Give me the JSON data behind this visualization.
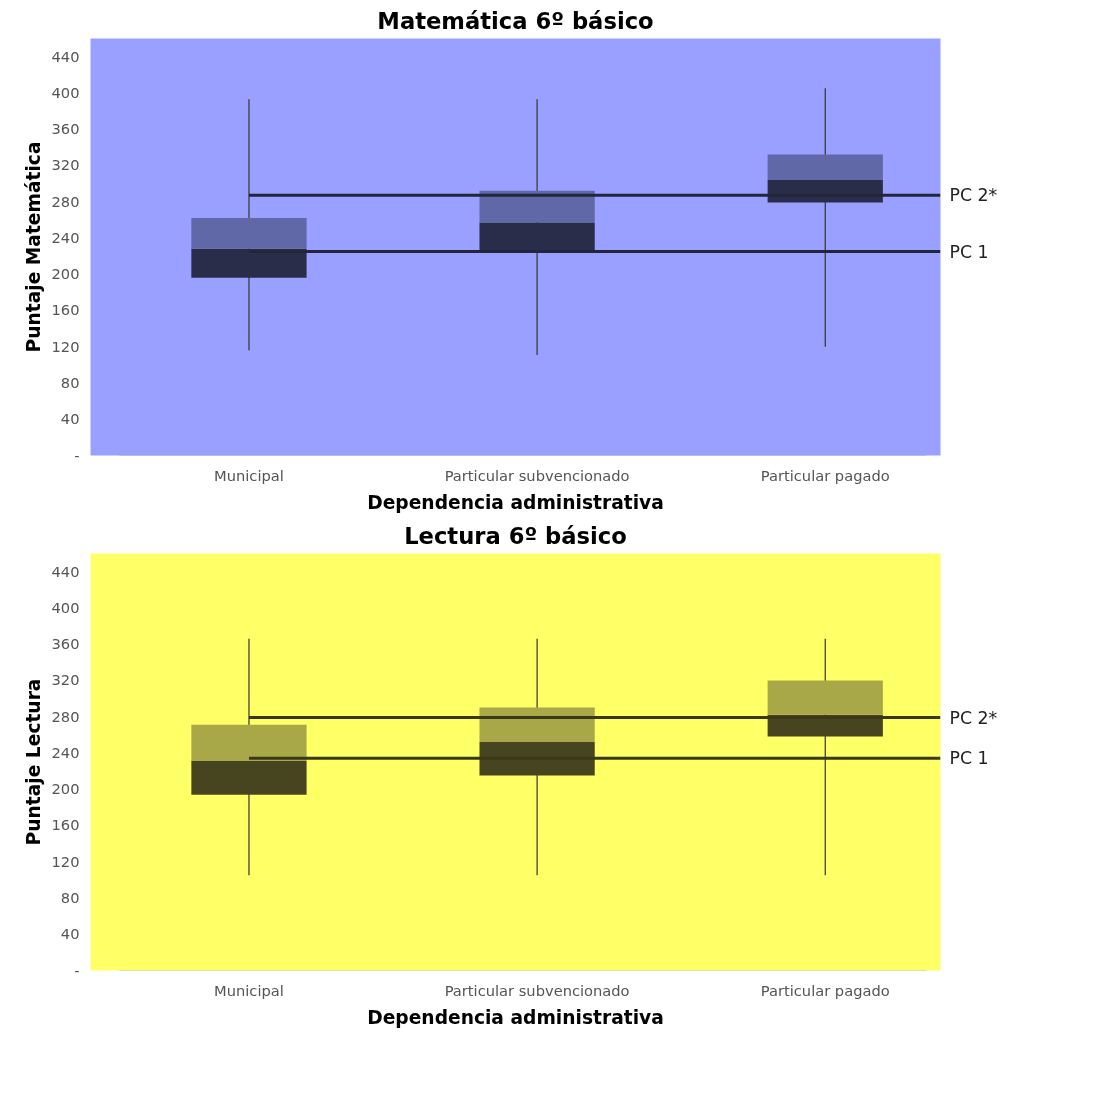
{
  "chart_data": [
    {
      "type": "box",
      "title": "Matemática 6º básico",
      "xlabel": "Dependencia administrativa",
      "ylabel": "Puntaje Matemática",
      "categories": [
        "Municipal",
        "Particular subvencionado",
        "Particular pagado"
      ],
      "series": [
        {
          "color": "#2a2d4a",
          "boxes": [
            {
              "low": 116,
              "q1": 196,
              "median": 228,
              "q3": 262,
              "high": 393
            },
            {
              "low": 111,
              "q1": 224,
              "median": 257,
              "q3": 292,
              "high": 393
            },
            {
              "low": 120,
              "q1": 279,
              "median": 304,
              "q3": 332,
              "high": 405
            }
          ]
        }
      ],
      "colors": [
        "#6068a8",
        "#6068a8",
        "#6068a8"
      ],
      "ylim": [
        0,
        460
      ],
      "yticks": [
        {
          "value": 0,
          "label": "-"
        },
        40,
        80,
        120,
        160,
        200,
        240,
        280,
        320,
        360,
        400,
        440
      ],
      "ref_lines": [
        {
          "axis": "y",
          "value": 287,
          "label": "PC 2*",
          "color": "#23253a"
        },
        {
          "axis": "y",
          "value": 225,
          "label": "PC 1",
          "color": "#23253a"
        }
      ],
      "grid": false
    },
    {
      "type": "box",
      "title": "Lectura 6º básico",
      "xlabel": "Dependencia administrativa",
      "ylabel": "Puntaje Lectura",
      "categories": [
        "Municipal",
        "Particular subvencionado",
        "Particular pagado"
      ],
      "series": [
        {
          "color": "#474520",
          "boxes": [
            {
              "low": 105,
              "q1": 194,
              "median": 231,
              "q3": 271,
              "high": 366
            },
            {
              "low": 105,
              "q1": 215,
              "median": 252,
              "q3": 290,
              "high": 366
            },
            {
              "low": 105,
              "q1": 258,
              "median": 282,
              "q3": 320,
              "high": 366
            }
          ]
        }
      ],
      "colors": [
        "#a8a848",
        "#a8a848",
        "#a8a848"
      ],
      "ylim": [
        0,
        460
      ],
      "yticks": [
        {
          "value": 0,
          "label": "-"
        },
        40,
        80,
        120,
        160,
        200,
        240,
        280,
        320,
        360,
        400,
        440
      ],
      "ref_lines": [
        {
          "axis": "y",
          "value": 279,
          "label": "PC 2*",
          "color": "#3a3818"
        },
        {
          "axis": "y",
          "value": 234,
          "label": "PC 1",
          "color": "#3a3818"
        }
      ],
      "grid": false
    }
  ]
}
